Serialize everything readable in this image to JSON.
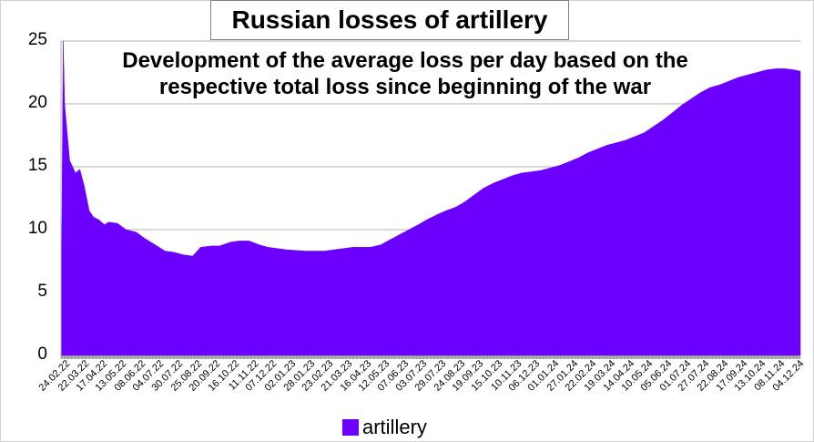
{
  "chart_data": {
    "type": "area",
    "title": "Russian losses of artillery",
    "subtitle_lines": [
      "Development of the average loss per day based on the",
      "respective total loss since beginning of the war"
    ],
    "xlabel": "",
    "ylabel": "",
    "ylim": [
      0,
      25
    ],
    "yticks": [
      0,
      5,
      10,
      15,
      20,
      25
    ],
    "grid": "horizontal",
    "legend": "bottom-center",
    "x_tick_labels": [
      "24.02.22",
      "22.03.22",
      "17.04.22",
      "13.05.22",
      "08.06.22",
      "04.07.22",
      "30.07.22",
      "25.08.22",
      "20.09.22",
      "16.10.22",
      "11.11.22",
      "07.12.22",
      "02.01.23",
      "28.01.23",
      "23.02.23",
      "21.03.23",
      "16.04.23",
      "12.05.23",
      "07.06.23",
      "03.07.23",
      "29.07.23",
      "24.08.23",
      "19.09.23",
      "15.10.23",
      "10.11.23",
      "06.12.23",
      "01.01.24",
      "27.01.24",
      "22.02.24",
      "19.03.24",
      "14.04.24",
      "10.05.24",
      "05.06.24",
      "01.07.24",
      "27.07.24",
      "22.08.24",
      "17.09.24",
      "13.10.24",
      "08.11.24",
      "04.12.24"
    ],
    "series": [
      {
        "name": "artillery",
        "color": "#6b00ff",
        "points": [
          [
            "24.02.22",
            8.0
          ],
          [
            "25.02.22",
            9.0
          ],
          [
            "27.02.22",
            25.0
          ],
          [
            "01.03.22",
            20.0
          ],
          [
            "04.03.22",
            18.0
          ],
          [
            "08.03.22",
            15.5
          ],
          [
            "12.03.22",
            15.0
          ],
          [
            "16.03.22",
            14.5
          ],
          [
            "22.03.22",
            14.8
          ],
          [
            "28.03.22",
            13.5
          ],
          [
            "04.04.22",
            11.5
          ],
          [
            "10.04.22",
            11.0
          ],
          [
            "17.04.22",
            10.8
          ],
          [
            "25.04.22",
            10.4
          ],
          [
            "01.05.22",
            10.6
          ],
          [
            "13.05.22",
            10.5
          ],
          [
            "25.05.22",
            10.0
          ],
          [
            "08.06.22",
            9.8
          ],
          [
            "20.06.22",
            9.3
          ],
          [
            "04.07.22",
            8.8
          ],
          [
            "18.07.22",
            8.3
          ],
          [
            "30.07.22",
            8.2
          ],
          [
            "12.08.22",
            8.0
          ],
          [
            "25.08.22",
            7.9
          ],
          [
            "05.09.22",
            8.6
          ],
          [
            "20.09.22",
            8.7
          ],
          [
            "01.10.22",
            8.7
          ],
          [
            "16.10.22",
            9.0
          ],
          [
            "28.10.22",
            9.1
          ],
          [
            "11.11.22",
            9.1
          ],
          [
            "25.11.22",
            8.8
          ],
          [
            "07.12.22",
            8.6
          ],
          [
            "20.12.22",
            8.5
          ],
          [
            "02.01.23",
            8.4
          ],
          [
            "15.01.23",
            8.35
          ],
          [
            "28.01.23",
            8.3
          ],
          [
            "10.02.23",
            8.3
          ],
          [
            "23.02.23",
            8.3
          ],
          [
            "08.03.23",
            8.4
          ],
          [
            "21.03.23",
            8.5
          ],
          [
            "04.04.23",
            8.6
          ],
          [
            "16.04.23",
            8.6
          ],
          [
            "28.04.23",
            8.6
          ],
          [
            "12.05.23",
            8.8
          ],
          [
            "25.05.23",
            9.2
          ],
          [
            "07.06.23",
            9.6
          ],
          [
            "20.06.23",
            10.0
          ],
          [
            "03.07.23",
            10.4
          ],
          [
            "15.07.23",
            10.8
          ],
          [
            "29.07.23",
            11.2
          ],
          [
            "10.08.23",
            11.5
          ],
          [
            "24.08.23",
            11.8
          ],
          [
            "05.09.23",
            12.2
          ],
          [
            "19.09.23",
            12.8
          ],
          [
            "01.10.23",
            13.3
          ],
          [
            "15.10.23",
            13.7
          ],
          [
            "28.10.23",
            14.0
          ],
          [
            "10.11.23",
            14.3
          ],
          [
            "23.11.23",
            14.5
          ],
          [
            "06.12.23",
            14.6
          ],
          [
            "19.12.23",
            14.7
          ],
          [
            "01.01.24",
            14.9
          ],
          [
            "14.01.24",
            15.1
          ],
          [
            "27.01.24",
            15.4
          ],
          [
            "09.02.24",
            15.7
          ],
          [
            "22.02.24",
            16.1
          ],
          [
            "06.03.24",
            16.4
          ],
          [
            "19.03.24",
            16.7
          ],
          [
            "01.04.24",
            16.9
          ],
          [
            "14.04.24",
            17.1
          ],
          [
            "27.04.24",
            17.4
          ],
          [
            "10.05.24",
            17.7
          ],
          [
            "23.05.24",
            18.2
          ],
          [
            "05.06.24",
            18.7
          ],
          [
            "18.06.24",
            19.3
          ],
          [
            "01.07.24",
            19.9
          ],
          [
            "14.07.24",
            20.4
          ],
          [
            "27.07.24",
            20.9
          ],
          [
            "09.08.24",
            21.3
          ],
          [
            "22.08.24",
            21.5
          ],
          [
            "04.09.24",
            21.8
          ],
          [
            "17.09.24",
            22.1
          ],
          [
            "30.09.24",
            22.3
          ],
          [
            "13.10.24",
            22.5
          ],
          [
            "26.10.24",
            22.7
          ],
          [
            "08.11.24",
            22.8
          ],
          [
            "21.11.24",
            22.8
          ],
          [
            "04.12.24",
            22.7
          ],
          [
            "12.12.24",
            22.6
          ]
        ]
      }
    ]
  }
}
